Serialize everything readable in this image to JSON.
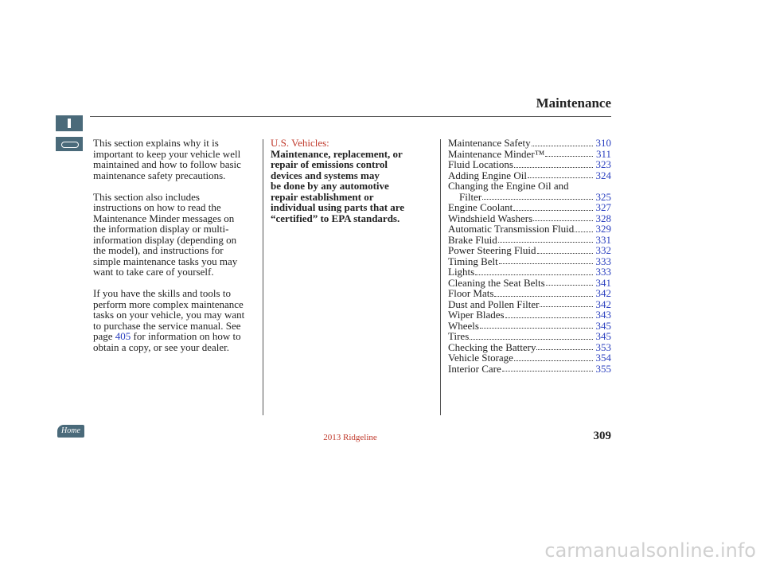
{
  "header": {
    "title": "Maintenance"
  },
  "intro": {
    "paragraphs": [
      [
        "This section explains why it is",
        "important to keep your vehicle well",
        "maintained and how to follow basic",
        "maintenance safety precautions."
      ],
      [
        "This section also includes",
        "instructions on how to read the",
        "Maintenance Minder messages on",
        "the information display or multi-",
        "information display (depending on",
        "the model), and instructions for",
        "simple maintenance tasks you may",
        "want to take care of yourself."
      ],
      [
        "If you have the skills and tools to",
        "perform more complex maintenance",
        "tasks on your vehicle, you may want",
        "to purchase the service manual. See",
        {
          "before": "page",
          "link": "405",
          "after": "for information on how to"
        },
        "obtain a copy, or see your dealer."
      ]
    ]
  },
  "notice": {
    "heading": "U.S. Vehicles:",
    "lines": [
      "Maintenance, replacement, or",
      "repair of emissions control",
      "devices and systems may",
      "be done by any automotive",
      "repair establishment or",
      "individual using parts that are",
      "“certified” to EPA standards."
    ]
  },
  "toc": [
    {
      "label": [
        "Maintenance Safety"
      ],
      "page": "310"
    },
    {
      "label": [
        "Maintenance Minder™"
      ],
      "page": "311"
    },
    {
      "label": [
        "Fluid Locations"
      ],
      "page": "323"
    },
    {
      "label": [
        "Adding Engine Oil"
      ],
      "page": "324"
    },
    {
      "label": [
        "Changing the Engine Oil and",
        "Filter"
      ],
      "page": "325"
    },
    {
      "label": [
        "Engine Coolant"
      ],
      "page": "327"
    },
    {
      "label": [
        "Windshield Washers"
      ],
      "page": "328"
    },
    {
      "label": [
        "Automatic Transmission Fluid"
      ],
      "page": "329"
    },
    {
      "label": [
        "Brake Fluid"
      ],
      "page": "331"
    },
    {
      "label": [
        "Power Steering Fluid"
      ],
      "page": "332"
    },
    {
      "label": [
        "Timing Belt"
      ],
      "page": "333"
    },
    {
      "label": [
        "Lights"
      ],
      "page": "333"
    },
    {
      "label": [
        "Cleaning the Seat Belts"
      ],
      "page": "341"
    },
    {
      "label": [
        "Floor Mats"
      ],
      "page": "342"
    },
    {
      "label": [
        "Dust and Pollen Filter"
      ],
      "page": "342"
    },
    {
      "label": [
        "Wiper Blades"
      ],
      "page": "343"
    },
    {
      "label": [
        "Wheels"
      ],
      "page": "345"
    },
    {
      "label": [
        "Tires"
      ],
      "page": "345"
    },
    {
      "label": [
        "Checking the Battery"
      ],
      "page": "353"
    },
    {
      "label": [
        "Vehicle Storage"
      ],
      "page": "354"
    },
    {
      "label": [
        "Interior Care"
      ],
      "page": "355"
    }
  ],
  "footer": {
    "home": "Home",
    "model": "2013 Ridgeline",
    "page_number": "309",
    "watermark": "carmanualsonline.info"
  }
}
